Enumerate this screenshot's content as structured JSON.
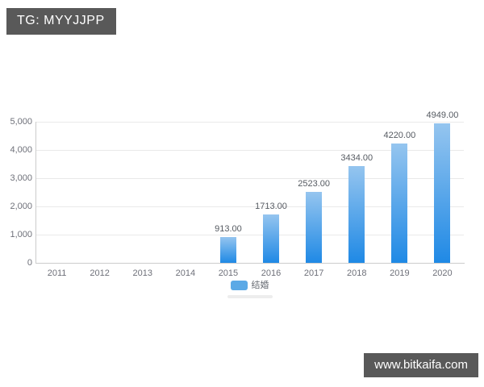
{
  "tag_box": {
    "label": "TG: MYYJJPP"
  },
  "watermark": {
    "label": "www.bitkaifa.com"
  },
  "colors": {
    "tag_background": "#595959",
    "tag_text": "#ffffff",
    "watermark_background": "#595959",
    "watermark_text": "#ffffff",
    "bar_gradient_top": "#95c5ef",
    "bar_gradient_bottom": "#1f89e5",
    "legend_swatch": "#5ba9e6",
    "gridline": "#e9e9e9",
    "axis_line": "#cccccc",
    "axis_text": "#6e7079",
    "value_label_text": "#555a61"
  },
  "chart_data": {
    "type": "bar",
    "title": "",
    "categories": [
      "2011",
      "2012",
      "2013",
      "2014",
      "2015",
      "2016",
      "2017",
      "2018",
      "2019",
      "2020"
    ],
    "series": [
      {
        "name": "结婚",
        "values": [
          null,
          null,
          null,
          null,
          913,
          1713,
          2523,
          3434,
          4220,
          4949
        ],
        "data_labels": [
          null,
          null,
          null,
          null,
          "913.00",
          "1713.00",
          "2523.00",
          "3434.00",
          "4220.00",
          "4949.00"
        ]
      }
    ],
    "xlabel": "",
    "ylabel": "",
    "ylim": [
      0,
      5000
    ],
    "yticks": [
      0,
      1000,
      2000,
      3000,
      4000,
      5000
    ],
    "ytick_labels": [
      "0",
      "1,000",
      "2,000",
      "3,000",
      "4,000",
      "5,000"
    ],
    "grid": true,
    "legend_position": "bottom"
  }
}
